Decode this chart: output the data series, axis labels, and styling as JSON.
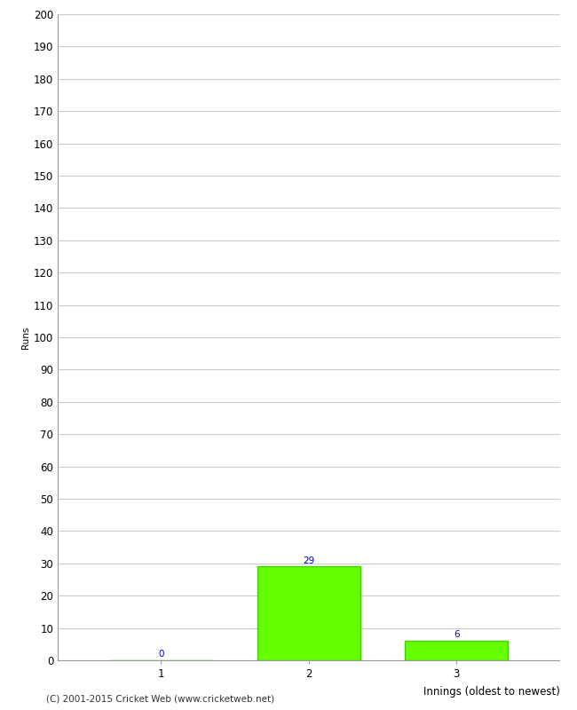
{
  "categories": [
    "1",
    "2",
    "3"
  ],
  "values": [
    0,
    29,
    6
  ],
  "bar_color": "#66ff00",
  "bar_edgecolor": "#44cc00",
  "ylabel": "Runs",
  "xlabel": "Innings (oldest to newest)",
  "ylim": [
    0,
    200
  ],
  "yticks": [
    0,
    10,
    20,
    30,
    40,
    50,
    60,
    70,
    80,
    90,
    100,
    110,
    120,
    130,
    140,
    150,
    160,
    170,
    180,
    190,
    200
  ],
  "footer": "(C) 2001-2015 Cricket Web (www.cricketweb.net)",
  "background_color": "#ffffff",
  "grid_color": "#cccccc",
  "label_color": "#0000cc",
  "label_fontsize": 7.5,
  "axis_fontsize": 8.5,
  "ylabel_fontsize": 7.5,
  "xlabel_fontsize": 8.5,
  "footer_fontsize": 7.5,
  "spine_color": "#999999"
}
